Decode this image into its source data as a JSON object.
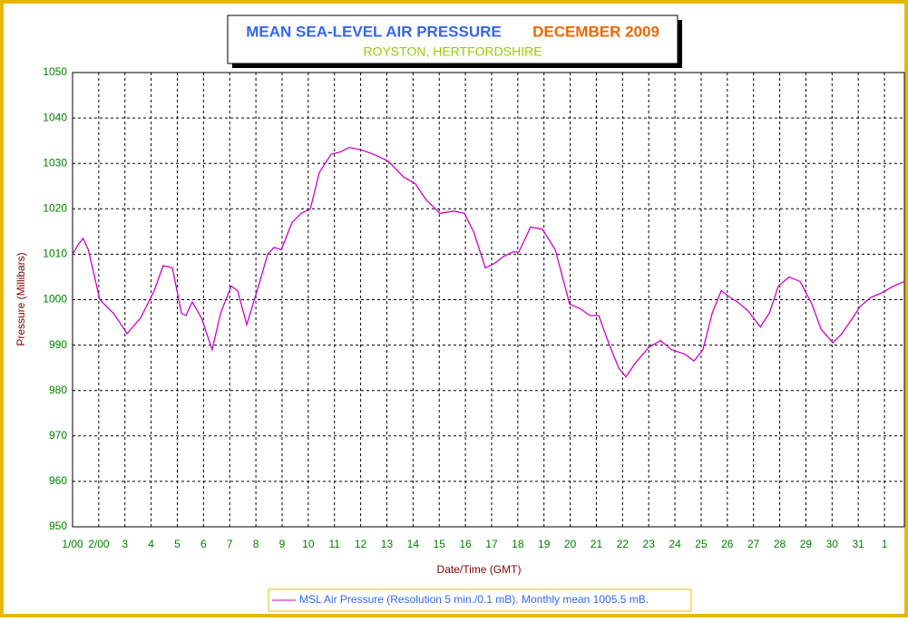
{
  "chart_data": {
    "type": "line",
    "title": "MEAN SEA-LEVEL AIR PRESSURE",
    "title_month": "DECEMBER 2009",
    "subtitle": "ROYSTON, HERTFORDSHIRE",
    "x_label": "Date/Time (GMT)",
    "y_label": "Pressure (Millibars)",
    "grid": true,
    "xlim": [
      1,
      32.76
    ],
    "ylim": [
      950,
      1050
    ],
    "yticks": [
      950,
      960,
      970,
      980,
      990,
      1000,
      1010,
      1020,
      1030,
      1040,
      1050
    ],
    "xticks": [
      {
        "value": 1,
        "label": "1/00"
      },
      {
        "value": 2,
        "label": "2/00"
      },
      3,
      4,
      5,
      6,
      7,
      8,
      9,
      10,
      11,
      12,
      13,
      14,
      15,
      16,
      17,
      18,
      19,
      20,
      21,
      22,
      23,
      24,
      25,
      26,
      27,
      28,
      29,
      30,
      31,
      {
        "value": 32,
        "label": "1"
      }
    ],
    "series": [
      {
        "name": "MSL Air Pressure (Resolution 5 min./0.1 mB). Monthly mean 1005.5 mB.",
        "color": "#cc00cc",
        "x": [
          1,
          1.2,
          1.4,
          1.6,
          1.8,
          2.04,
          2.56,
          2.8,
          3.08,
          3.6,
          4.12,
          4.46,
          4.81,
          5.16,
          5.33,
          5.57,
          5.92,
          6.33,
          6.65,
          7.06,
          7.3,
          7.65,
          8.1,
          8.45,
          8.69,
          8.97,
          9.38,
          9.73,
          10.08,
          10.42,
          10.87,
          11.22,
          11.56,
          12.01,
          12.5,
          13.05,
          13.64,
          14.09,
          14.5,
          15.03,
          15.55,
          15.96,
          16.31,
          16.76,
          17.11,
          17.45,
          17.8,
          18.04,
          18.49,
          18.94,
          19.43,
          19.98,
          20.4,
          20.74,
          21.09,
          21.5,
          21.85,
          22.13,
          22.48,
          23,
          23.45,
          23.86,
          24.38,
          24.73,
          25.07,
          25.42,
          25.77,
          26.11,
          26.39,
          26.8,
          27.26,
          27.6,
          27.95,
          28.36,
          28.78,
          29.23,
          29.58,
          30.03,
          30.37,
          30.79,
          31.07,
          31.48,
          31.9,
          32.35,
          32.76
        ],
        "values": [
          1010,
          1012,
          1013.5,
          1011,
          1006,
          1000,
          997,
          995,
          992.5,
          996,
          1002,
          1007.5,
          1007,
          997,
          996.5,
          999.5,
          996,
          989,
          997,
          1003,
          1002,
          994.5,
          1003,
          1010,
          1011.5,
          1011,
          1017,
          1019,
          1020,
          1028,
          1032,
          1032.5,
          1033.5,
          1033,
          1032,
          1030.5,
          1027,
          1025.5,
          1022,
          1019,
          1019.5,
          1019,
          1015,
          1007,
          1008,
          1009.5,
          1010.5,
          1010.5,
          1016,
          1015.5,
          1011,
          999,
          998,
          996.5,
          996.5,
          990,
          985,
          983,
          986,
          989.5,
          991,
          989,
          988,
          986.5,
          989,
          997,
          1002,
          1000.5,
          999.5,
          997.5,
          994,
          997,
          1003,
          1005,
          1004,
          999,
          993.5,
          990.5,
          992.5,
          996,
          998.5,
          1000.5,
          1001.5,
          1003,
          1004
        ]
      }
    ]
  }
}
